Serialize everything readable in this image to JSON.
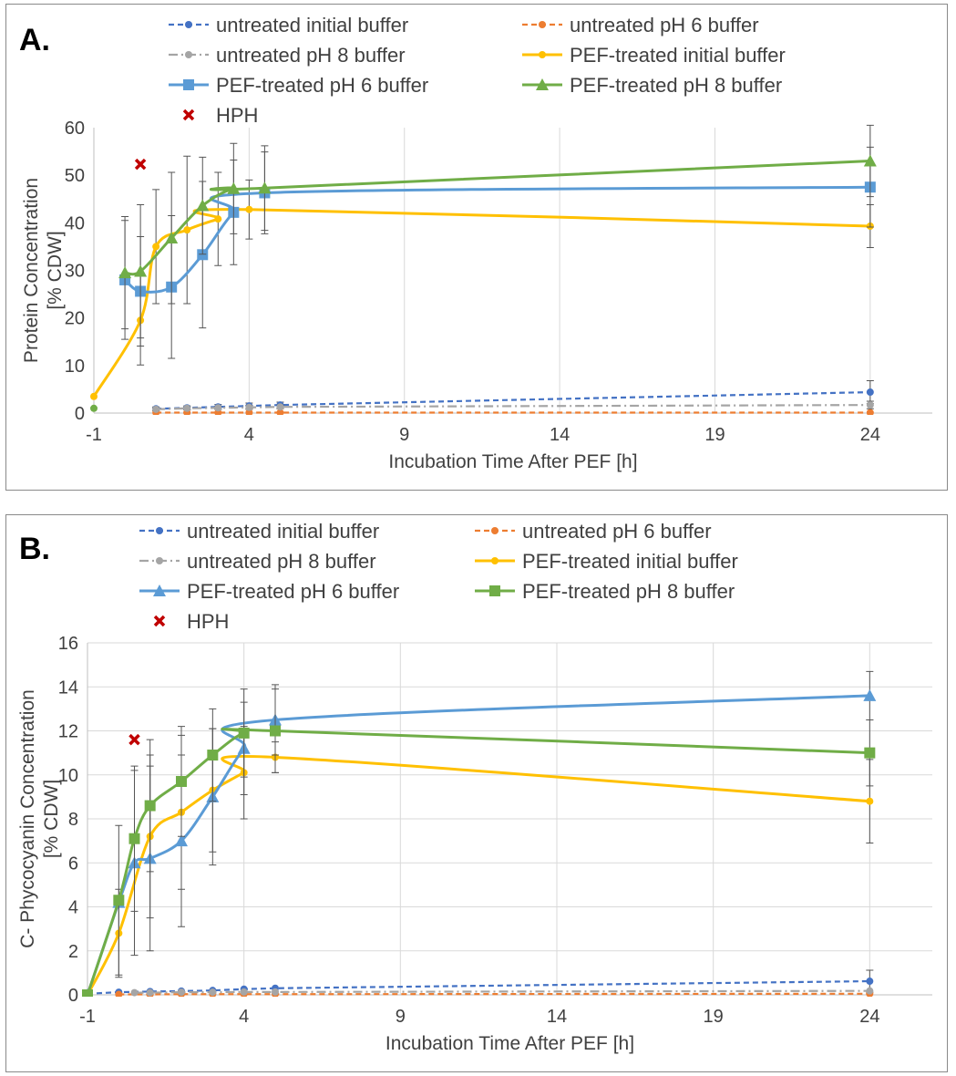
{
  "chart_data": [
    {
      "type": "line",
      "panel_label": "A.",
      "xlabel": "Incubation Time After PEF [h]",
      "ylabel_lines": [
        "Protein Concentration",
        "[% CDW]"
      ],
      "xlim": [
        -1,
        26
      ],
      "ylim": [
        0,
        60
      ],
      "xticks": [
        -1,
        4,
        9,
        14,
        19,
        24
      ],
      "yticks": [
        0,
        10,
        20,
        30,
        40,
        50,
        60
      ],
      "grid": "vertical",
      "legend_position": "top",
      "series": [
        {
          "name": "untreated initial buffer",
          "color": "#4472c4",
          "dash": "dash",
          "marker": "circle",
          "x": [
            1,
            2,
            3,
            4,
            5,
            24
          ],
          "y": [
            0.9,
            1.1,
            1.3,
            1.5,
            1.7,
            4.4
          ],
          "err": [
            0.4,
            0.4,
            0.5,
            0.6,
            0.6,
            2.4
          ]
        },
        {
          "name": "untreated pH 6 buffer",
          "color": "#ed7d31",
          "dash": "dash",
          "marker": "circle",
          "x": [
            1,
            2,
            3,
            4,
            5,
            24
          ],
          "y": [
            0.1,
            0.1,
            0.1,
            0.1,
            0.1,
            0.1
          ],
          "err": []
        },
        {
          "name": "untreated pH 8 buffer",
          "color": "#a5a5a5",
          "dash": "dashdot",
          "marker": "circle",
          "x": [
            1,
            2,
            3,
            4,
            5,
            24
          ],
          "y": [
            0.8,
            1.0,
            1.1,
            1.2,
            1.3,
            1.7
          ],
          "err": [
            0.3,
            0.3,
            0.3,
            0.4,
            0.4,
            0.8
          ]
        },
        {
          "name": "PEF-treated initial buffer",
          "color": "#ffc000",
          "dash": "solid",
          "marker": "circle",
          "x": [
            -1,
            0.5,
            1,
            2,
            3,
            4,
            24
          ],
          "y": [
            3.5,
            19.5,
            35,
            38.5,
            40.8,
            42.8,
            39.3
          ],
          "err": [
            0,
            9.4,
            12,
            15.5,
            9.8,
            6.2,
            4.5
          ],
          "smooth": true
        },
        {
          "name": "PEF-treated pH 6 buffer",
          "color": "#5b9bd5",
          "dash": "solid",
          "marker": "square",
          "x": [
            0,
            0.5,
            1.5,
            2.5,
            3.5,
            4.5,
            24
          ],
          "y": [
            28,
            25.6,
            26.5,
            33.3,
            42.2,
            46.3,
            47.5
          ],
          "err": [
            12.5,
            11.5,
            15,
            15.4,
            11,
            8.6,
            8.4
          ],
          "smooth": true
        },
        {
          "name": "PEF-treated pH 8 buffer",
          "color": "#70ad47",
          "dash": "solid",
          "marker": "triangle",
          "x": [
            0,
            0.5,
            1.5,
            2.5,
            3.5,
            4.5,
            24
          ],
          "y": [
            29.5,
            29.8,
            36.8,
            43.6,
            47.2,
            47.3,
            53
          ],
          "err": [
            11.8,
            14,
            13.8,
            10.2,
            9.5,
            8.9,
            7.5
          ],
          "smooth": true
        },
        {
          "name": "HPH",
          "color": "#c00000",
          "dash": "none",
          "marker": "x",
          "x": [
            0.5
          ],
          "y": [
            52.3
          ],
          "err": []
        }
      ],
      "extra_points": [
        {
          "color": "#70ad47",
          "x": -1,
          "y": 1.0
        }
      ]
    },
    {
      "type": "line",
      "panel_label": "B.",
      "xlabel": "Incubation Time After PEF [h]",
      "ylabel_lines": [
        "C- Phycocyanin Concentration",
        "[% CDW]"
      ],
      "xlim": [
        -1,
        26
      ],
      "ylim": [
        0,
        16
      ],
      "xticks": [
        -1,
        4,
        9,
        14,
        19,
        24
      ],
      "yticks": [
        0,
        2,
        4,
        6,
        8,
        10,
        12,
        14,
        16
      ],
      "grid": "both",
      "legend_position": "top",
      "series": [
        {
          "name": "untreated initial buffer",
          "color": "#4472c4",
          "dash": "dash",
          "marker": "circle",
          "x": [
            -1,
            0,
            1,
            2,
            3,
            4,
            5,
            24
          ],
          "y": [
            0.05,
            0.12,
            0.15,
            0.17,
            0.2,
            0.26,
            0.3,
            0.62
          ],
          "err": [
            0,
            0,
            0,
            0,
            0,
            0,
            0,
            0.5
          ]
        },
        {
          "name": "untreated pH 6 buffer",
          "color": "#ed7d31",
          "dash": "dash",
          "marker": "circle",
          "x": [
            0,
            1,
            2,
            3,
            4,
            5,
            24
          ],
          "y": [
            0.02,
            0.02,
            0.03,
            0.03,
            0.03,
            0.03,
            0.05
          ],
          "err": []
        },
        {
          "name": "untreated pH 8 buffer",
          "color": "#a5a5a5",
          "dash": "dashdot",
          "marker": "circle",
          "x": [
            0.5,
            1,
            2,
            3,
            4,
            5,
            24
          ],
          "y": [
            0.1,
            0.1,
            0.12,
            0.12,
            0.13,
            0.13,
            0.18
          ],
          "err": []
        },
        {
          "name": "PEF-treated initial buffer",
          "color": "#ffc000",
          "dash": "solid",
          "marker": "circle",
          "x": [
            -1,
            0,
            1,
            2,
            3,
            4,
            5,
            24
          ],
          "y": [
            0,
            2.8,
            7.2,
            8.3,
            9.3,
            10.1,
            10.8,
            8.8
          ],
          "err": [
            0,
            2,
            3.7,
            3.5,
            2.8,
            2.1,
            0.7,
            1.9
          ],
          "smooth": true
        },
        {
          "name": "PEF-treated pH 6 buffer",
          "color": "#5b9bd5",
          "dash": "solid",
          "marker": "triangle",
          "x": [
            -1,
            0,
            0.5,
            1,
            2,
            3,
            4,
            5,
            24
          ],
          "y": [
            0,
            4.2,
            6.0,
            6.2,
            7.0,
            9.0,
            11.2,
            12.5,
            13.6
          ],
          "err": [
            0,
            0,
            4.2,
            4.2,
            3.9,
            3.1,
            2.1,
            1.6,
            1.1
          ],
          "smooth": true
        },
        {
          "name": "PEF-treated pH 8 buffer",
          "color": "#70ad47",
          "dash": "solid",
          "marker": "square",
          "x": [
            -1,
            0,
            0.5,
            1,
            2,
            3,
            4,
            5,
            24
          ],
          "y": [
            0,
            4.3,
            7.1,
            8.6,
            9.7,
            10.9,
            11.9,
            12.0,
            11.0
          ],
          "err": [
            0,
            3.4,
            3.3,
            3.0,
            2.5,
            2.1,
            2.0,
            1.9,
            1.5
          ],
          "smooth": true
        },
        {
          "name": "HPH",
          "color": "#c00000",
          "dash": "none",
          "marker": "x",
          "x": [
            0.5
          ],
          "y": [
            11.6
          ],
          "err": []
        }
      ]
    }
  ]
}
